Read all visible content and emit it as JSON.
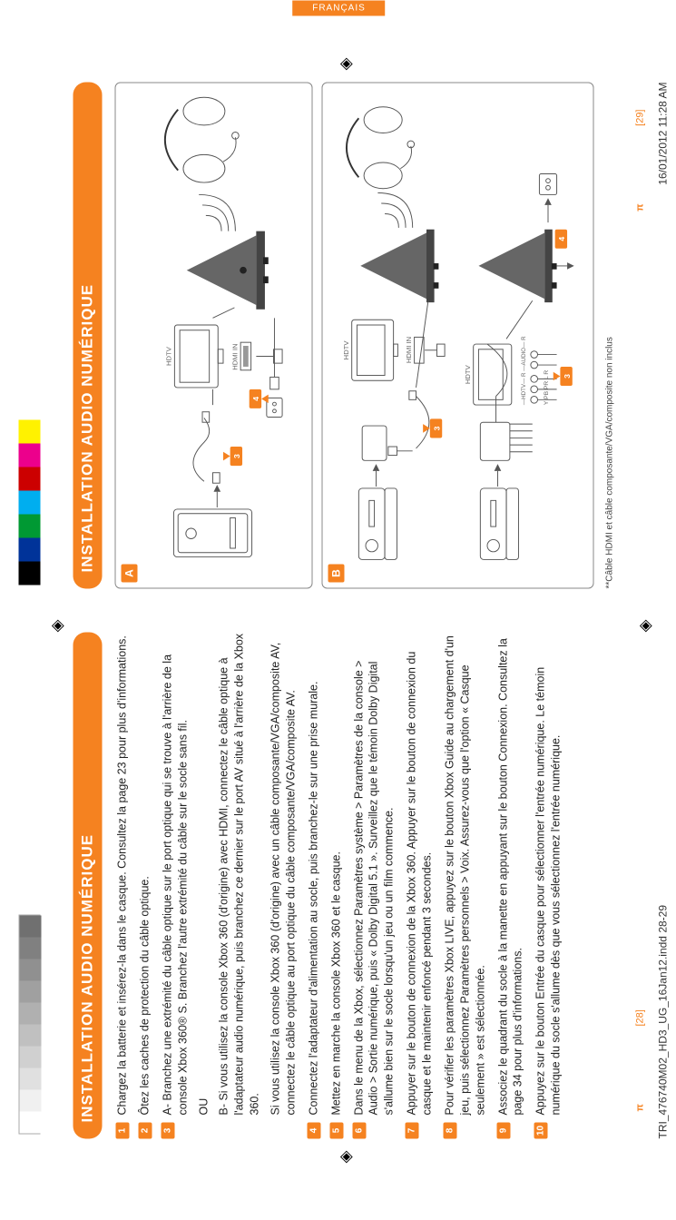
{
  "colorbar": [
    "#000000",
    "#003399",
    "#009933",
    "#00aeef",
    "#cc0000",
    "#ec008c",
    "#fff200",
    "#ffffff"
  ],
  "graybar": [
    "#ffffff",
    "#f0f0f0",
    "#e0e0e0",
    "#d0d0d0",
    "#c0c0c0",
    "#b0b0b0",
    "#a0a0a0",
    "#909090",
    "#808080",
    "#707070"
  ],
  "tab_label": "FRANÇAIS",
  "left": {
    "heading": "INSTALLATION AUDIO NUMÉRIQUE",
    "steps": [
      {
        "n": "1",
        "t": "Chargez la batterie et insérez-la dans le casque. Consultez la page 23 pour plus d'informations."
      },
      {
        "n": "2",
        "t": "Ôtez les caches de protection du câble optique."
      },
      {
        "n": "3",
        "t": "A- Branchez une extrémité du câble optique sur le port optique qui se trouve à l'arrière de la console Xbox 360® S. Branchez l'autre extrémité du câble sur le socle sans fil.",
        "sub": [
          "OU",
          "B- Si vous utilisez la console Xbox 360 (d'origine) avec HDMI, connectez le câble optique à l'adaptateur audio numérique, puis branchez ce dernier sur le port AV situé à l'arrière de la Xbox 360.",
          "Si vous utilisez la console Xbox 360 (d'origine) avec un câble composante/VGA/composite AV, connectez le câble optique au port optique du câble composante/VGA/composite AV."
        ]
      },
      {
        "n": "4",
        "t": "Connectez l'adaptateur d'alimentation au socle, puis branchez-le sur une prise murale."
      },
      {
        "n": "5",
        "t": "Mettez en marche la console Xbox 360 et le casque."
      },
      {
        "n": "6",
        "t": "Dans le menu de la Xbox, sélectionnez Paramètres système > Paramètres de la console > Audio > Sortie numérique, puis « Dolby Digital 5.1 ». Surveillez que le témoin Dolby Digital s'allume bien sur le socle lorsqu'un jeu ou un film commence."
      },
      {
        "n": "7",
        "t": "Appuyer sur le bouton de connexion de la Xbox 360. Appuyer sur le bouton de connexion du casque et le maintenir enfoncé pendant 3 secondes."
      },
      {
        "n": "8",
        "t": "Pour vérifier les paramètres Xbox LIVE, appuyez sur le bouton Xbox Guide au chargement d'un jeu, puis sélectionnez Paramètres personnels > Voix. Assurez-vous que l'option « Casque seulement » est sélectionnée."
      },
      {
        "n": "9",
        "t": "Associez le quadrant du socle à la manette en appuyant sur le bouton Connexion. Consultez la page 34 pour plus d'informations."
      },
      {
        "n": "10",
        "t": "Appuyez sur le bouton Entrée du casque pour sélectionner l'entrée numérique. Le témoin numérique du socle s'allume dès que vous sélectionnez l'entrée numérique."
      }
    ]
  },
  "right": {
    "heading": "INSTALLATION AUDIO NUMÉRIQUE",
    "diagA": {
      "letter": "A",
      "hdtv": "HDTV",
      "hdmi": "HDMI IN",
      "callouts": [
        "3",
        "4"
      ]
    },
    "diagB": {
      "letter": "B",
      "hdtv": "HDTV",
      "hdmi": "HDMI IN",
      "ports": "Y PB PR  L  R",
      "portsTop": "HDTV  R  —AUDIO—  R",
      "callouts": [
        "3",
        "4",
        "3",
        "4"
      ]
    },
    "footnote": "**Câble HDMI et câble composante/VGA/composite non inclus"
  },
  "pages": {
    "left_sym": "π",
    "left_num": "[28]",
    "right_sym": "π",
    "right_num": "[29]"
  },
  "footer": {
    "file": "TRI_476740M02_HD3_UG_16Jan12.indd   28-29",
    "stamp": "16/01/2012   11:28 AM"
  }
}
